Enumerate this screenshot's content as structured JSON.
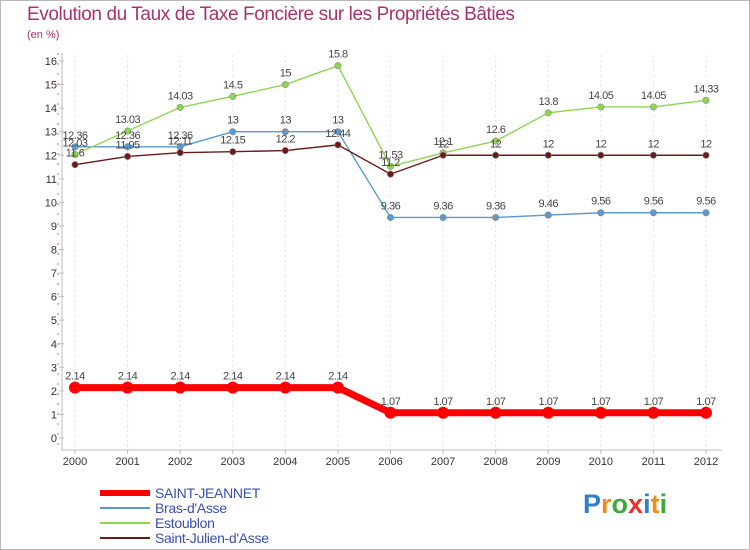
{
  "chart_data": {
    "type": "line",
    "title": "Evolution du Taux de Taxe Foncière sur les Propriétés Bâties",
    "subtitle": "(en %)",
    "categories": [
      "2000",
      "2001",
      "2002",
      "2003",
      "2004",
      "2005",
      "2006",
      "2007",
      "2008",
      "2009",
      "2010",
      "2011",
      "2012"
    ],
    "ylim": [
      0,
      16
    ],
    "yticks": [
      "0",
      "1",
      "2",
      "3",
      "4",
      "5",
      "6",
      "7",
      "8",
      "9",
      "10",
      "11",
      "12",
      "13",
      "14",
      "15",
      "16"
    ],
    "series": [
      {
        "name": "SAINT-JEANNET",
        "color": "#ff0000",
        "values": [
          2.14,
          2.14,
          2.14,
          2.14,
          2.14,
          2.14,
          1.07,
          1.07,
          1.07,
          1.07,
          1.07,
          1.07,
          1.07
        ],
        "labels": [
          "2.14",
          "2.14",
          "2.14",
          "2.14",
          "2.14",
          "2.14",
          "1.07",
          "1.07",
          "1.07",
          "1.07",
          "1.07",
          "1.07",
          "1.07"
        ]
      },
      {
        "name": "Bras-d'Asse",
        "color": "#5a9ad0",
        "values": [
          12.36,
          12.36,
          12.36,
          13,
          13,
          13,
          9.36,
          9.36,
          9.36,
          9.46,
          9.56,
          9.56,
          9.56
        ],
        "labels": [
          "12.36",
          "12.36",
          "12.36",
          "13",
          "13",
          "13",
          "9.36",
          "9.36",
          "9.36",
          "9.46",
          "9.56",
          "9.56",
          "9.56"
        ]
      },
      {
        "name": "Estoublon",
        "color": "#8ed650",
        "values": [
          12.03,
          13.03,
          14.03,
          14.5,
          15,
          15.8,
          11.53,
          12.1,
          12.6,
          13.8,
          14.05,
          14.05,
          14.33
        ],
        "labels": [
          "12.03",
          "13.03",
          "14.03",
          "14.5",
          "15",
          "15.8",
          "11.53",
          "12.1",
          "12.6",
          "13.8",
          "14.05",
          "14.05",
          "14.33"
        ]
      },
      {
        "name": "Saint-Julien-d'Asse",
        "color": "#6b1a1a",
        "values": [
          11.6,
          11.95,
          12.11,
          12.15,
          12.2,
          12.44,
          11.2,
          12,
          12,
          12,
          12,
          12,
          12
        ],
        "labels": [
          "11.6",
          "11.95",
          "12.11",
          "12.15",
          "12.2",
          "12.44",
          "11.2",
          "12",
          "12",
          "12",
          "12",
          "12",
          "12"
        ]
      }
    ]
  },
  "legend": [
    {
      "label": "SAINT-JEANNET",
      "color": "#ff0000"
    },
    {
      "label": "Bras-d'Asse",
      "color": "#5a9ad0"
    },
    {
      "label": "Estoublon",
      "color": "#8ed650"
    },
    {
      "label": "Saint-Julien-d'Asse",
      "color": "#6b1a1a"
    }
  ],
  "logo": {
    "text": "Proxiti",
    "letters": [
      {
        "ch": "P",
        "color": "#2f7fd0"
      },
      {
        "ch": "r",
        "color": "#f08c1a"
      },
      {
        "ch": "o",
        "color": "#3fa83a"
      },
      {
        "ch": "x",
        "color": "#e8332a"
      },
      {
        "ch": "i",
        "color": "#2f7fd0"
      },
      {
        "ch": "t",
        "color": "#f08c1a"
      },
      {
        "ch": "i",
        "color": "#3fa83a"
      }
    ]
  }
}
